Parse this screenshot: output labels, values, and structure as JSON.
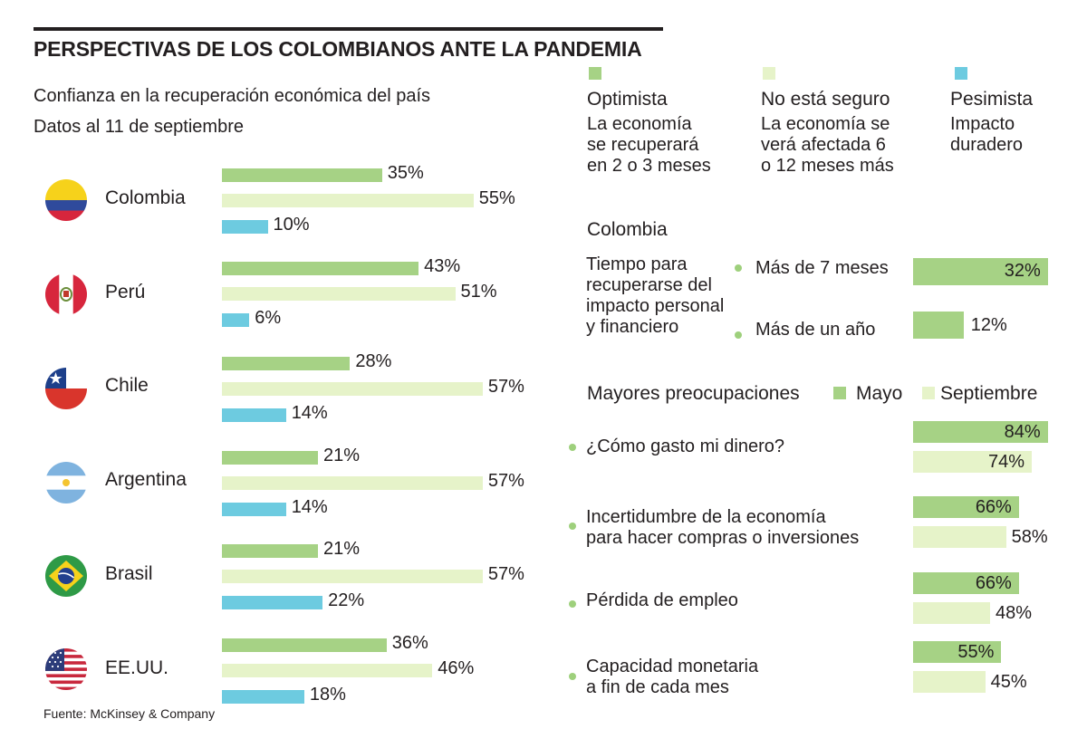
{
  "header": {
    "title": "PERSPECTIVAS DE LOS COLOMBIANOS ANTE LA PANDEMIA",
    "subtitle": "Confianza en la recuperación económica del país",
    "date": "Datos al 11 de septiembre"
  },
  "legend": [
    {
      "name": "Optimista",
      "desc": [
        "La economía",
        "se recuperará",
        "en 2 o 3 meses"
      ],
      "color": "#a6d285"
    },
    {
      "name": "No está seguro",
      "desc": [
        "La economía se",
        "verá afectada 6",
        "o 12 meses más"
      ],
      "color": "#e6f3c9"
    },
    {
      "name": "Pesimista",
      "desc": [
        "Impacto",
        "duradero"
      ],
      "color": "#6dcbe0"
    }
  ],
  "colors": {
    "green": "#a6d285",
    "light": "#e6f3c9",
    "blue": "#6dcbe0",
    "dot": "#9ed07c",
    "text": "#231f20"
  },
  "chart_data": [
    {
      "type": "bar",
      "orientation": "horizontal",
      "title": "Confianza en la recuperación económica del país",
      "categories": [
        "Colombia",
        "Perú",
        "Chile",
        "Argentina",
        "Brasil",
        "EE.UU."
      ],
      "series": [
        {
          "name": "Optimista",
          "values": [
            35,
            43,
            28,
            21,
            21,
            36
          ]
        },
        {
          "name": "No está seguro",
          "values": [
            55,
            51,
            57,
            57,
            57,
            46
          ]
        },
        {
          "name": "Pesimista",
          "values": [
            10,
            6,
            14,
            14,
            22,
            18
          ]
        }
      ],
      "labels": [
        [
          "35%",
          "55%",
          "10%"
        ],
        [
          "43%",
          "51%",
          "6%"
        ],
        [
          "28%",
          "57%",
          "14%"
        ],
        [
          "21%",
          "57%",
          "14%"
        ],
        [
          "21%",
          "57%",
          "22%"
        ],
        [
          "36%",
          "46%",
          "18%"
        ]
      ],
      "unit": "%"
    },
    {
      "type": "bar",
      "orientation": "horizontal",
      "title": "Colombia",
      "description": [
        "Tiempo para",
        "recuperarse del",
        "impacto personal",
        "y financiero"
      ],
      "categories": [
        "Más de 7 meses",
        "Más de un año"
      ],
      "values": [
        32,
        12
      ],
      "labels": [
        "32%",
        "12%"
      ],
      "unit": "%"
    },
    {
      "type": "bar",
      "orientation": "horizontal",
      "title": "Mayores preocupaciones",
      "legend": [
        "Mayo",
        "Septiembre"
      ],
      "categories": [
        [
          "¿Cómo gasto mi dinero?"
        ],
        [
          "Incertidumbre de la economía",
          "para hacer compras o inversiones"
        ],
        [
          "Pérdida de empleo"
        ],
        [
          "Capacidad monetaria",
          "a fin de cada mes"
        ]
      ],
      "series": [
        {
          "name": "Mayo",
          "values": [
            84,
            66,
            66,
            55
          ],
          "labels": [
            "84%",
            "66%",
            "66%",
            "55%"
          ]
        },
        {
          "name": "Septiembre",
          "values": [
            74,
            58,
            48,
            45
          ],
          "labels": [
            "74%",
            "58%",
            "48%",
            "45%"
          ]
        }
      ],
      "unit": "%"
    }
  ],
  "source": "Fuente: McKinsey & Company"
}
